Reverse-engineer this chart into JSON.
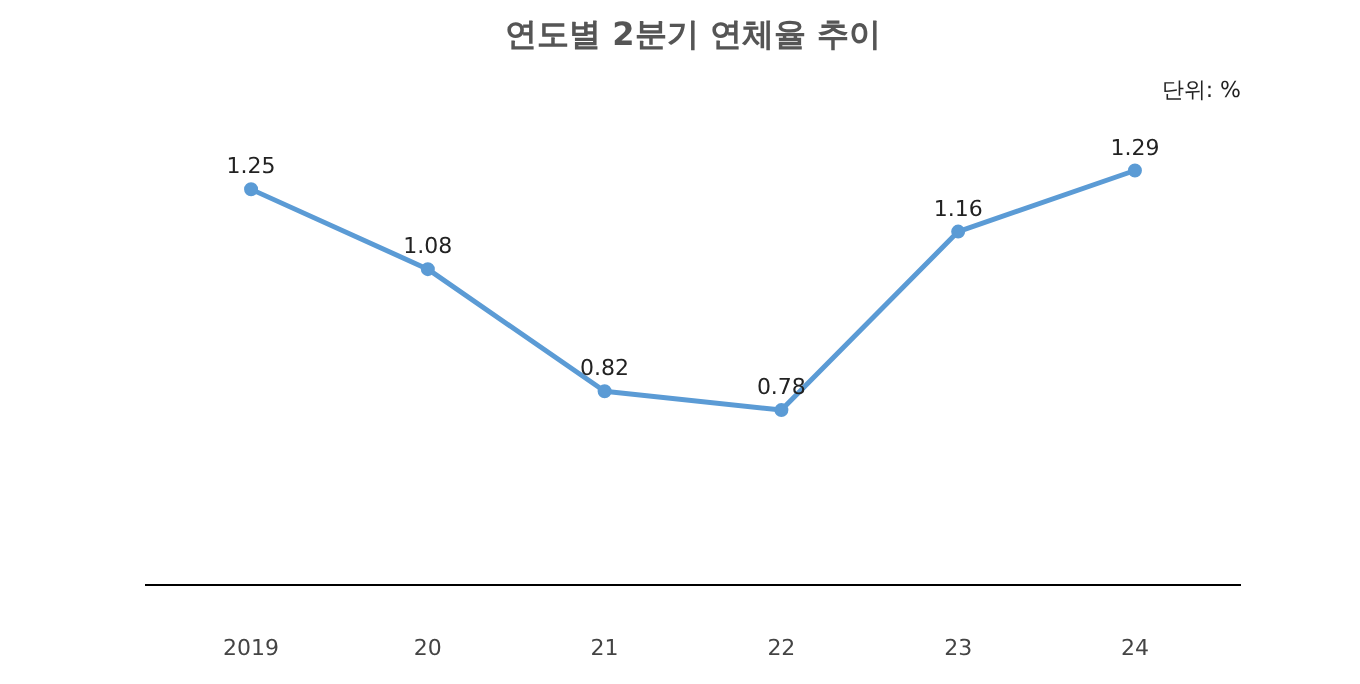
{
  "chart_data": {
    "type": "line",
    "title": "연도별 2분기 연체율 추이",
    "categories": [
      "2019",
      "20",
      "21",
      "22",
      "23",
      "24"
    ],
    "series": [
      {
        "color": "#5b9bd5",
        "values": [
          1.25,
          1.08,
          0.82,
          0.78,
          1.16,
          1.29
        ]
      }
    ],
    "annotations": [
      "단위: %"
    ],
    "data_labels": true,
    "marker": "circle",
    "line_style": "solid",
    "grid": false
  }
}
